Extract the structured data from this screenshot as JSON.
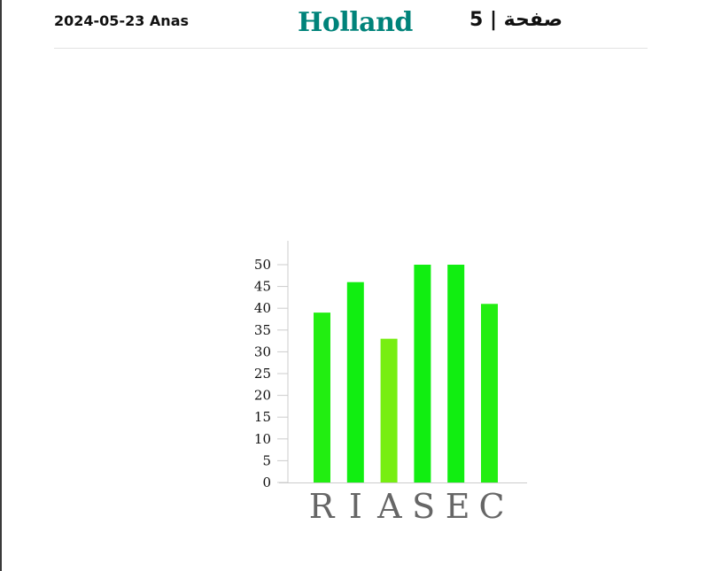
{
  "header": {
    "date_user": "2024-05-23 Anas",
    "title": "Holland",
    "page": "صفحة | 5",
    "title_color": "#00837a"
  },
  "chart_data": {
    "type": "bar",
    "categories": [
      "R",
      "I",
      "A",
      "S",
      "E",
      "C"
    ],
    "values": [
      39,
      46,
      33,
      50,
      50,
      41
    ],
    "bar_colors": [
      "#22ee11",
      "#11ee11",
      "#77ee11",
      "#11ee11",
      "#11ee11",
      "#22ee11"
    ],
    "category_label_color": "#666666",
    "ylim": [
      0,
      50
    ],
    "y_ticks": [
      0,
      5,
      10,
      15,
      20,
      25,
      30,
      35,
      40,
      45,
      50
    ],
    "grid": false,
    "legend": "none"
  }
}
